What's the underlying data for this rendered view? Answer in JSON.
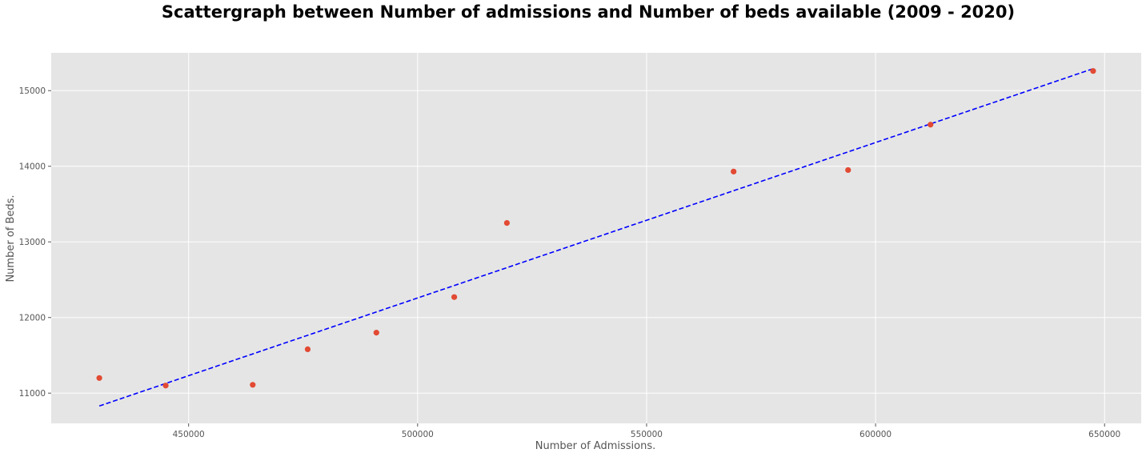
{
  "chart_data": {
    "type": "scatter",
    "title": "Scattergraph between Number of admissions and Number of beds available (2009 - 2020)",
    "xlabel": "Number of Admissions.",
    "ylabel": "Number of Beds.",
    "xlim": [
      420000,
      658000
    ],
    "ylim": [
      10600,
      15500
    ],
    "xticks": [
      450000,
      500000,
      550000,
      600000,
      650000
    ],
    "yticks": [
      11000,
      12000,
      13000,
      14000,
      15000
    ],
    "grid": true,
    "background_color": "#e5e5e5",
    "grid_color": "#ffffff",
    "series": [
      {
        "kind": "points",
        "color": "#e24a33",
        "x": [
          430500,
          445000,
          464000,
          476000,
          491000,
          508000,
          519500,
          569000,
          594000,
          612000,
          647500
        ],
        "y": [
          11200,
          11100,
          11110,
          11580,
          11800,
          12270,
          13250,
          13930,
          13950,
          14550,
          15260
        ]
      },
      {
        "kind": "trend-line",
        "color": "#0000ff",
        "style": "dashed",
        "x": [
          430500,
          647500
        ],
        "y": [
          10830,
          15290
        ]
      }
    ]
  }
}
